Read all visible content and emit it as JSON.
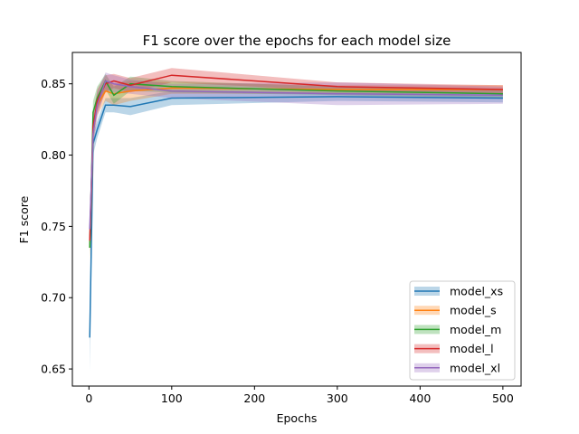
{
  "chart_data": {
    "type": "line",
    "title": "F1 score over the epochs for each model size",
    "xlabel": "Epochs",
    "ylabel": "F1 score",
    "xlim": [
      -20,
      522
    ],
    "ylim": [
      0.638,
      0.872
    ],
    "xticks": [
      0,
      100,
      200,
      300,
      400,
      500
    ],
    "yticks": [
      0.65,
      0.7,
      0.75,
      0.8,
      0.85
    ],
    "ytick_labels": [
      "0.65",
      "0.70",
      "0.75",
      "0.80",
      "0.85"
    ],
    "grid": false,
    "legend_position": "lower-right",
    "x": [
      1,
      5,
      10,
      20,
      30,
      50,
      100,
      300,
      500
    ],
    "series": [
      {
        "name": "model_xs",
        "color": "#1f77b4",
        "values": [
          0.672,
          0.808,
          0.818,
          0.835,
          0.835,
          0.834,
          0.84,
          0.841,
          0.84
        ],
        "lower": [
          0.648,
          0.8,
          0.812,
          0.83,
          0.83,
          0.828,
          0.835,
          0.838,
          0.837
        ],
        "upper": [
          0.695,
          0.815,
          0.824,
          0.84,
          0.84,
          0.84,
          0.845,
          0.844,
          0.843
        ]
      },
      {
        "name": "model_s",
        "color": "#ff7f0e",
        "values": [
          0.735,
          0.815,
          0.835,
          0.845,
          0.843,
          0.845,
          0.847,
          0.846,
          0.846
        ],
        "lower": [
          0.725,
          0.808,
          0.828,
          0.838,
          0.835,
          0.838,
          0.843,
          0.843,
          0.843
        ],
        "upper": [
          0.745,
          0.822,
          0.842,
          0.852,
          0.85,
          0.852,
          0.851,
          0.849,
          0.849
        ]
      },
      {
        "name": "model_m",
        "color": "#2ca02c",
        "values": [
          0.735,
          0.83,
          0.84,
          0.852,
          0.842,
          0.85,
          0.848,
          0.845,
          0.843
        ],
        "lower": [
          0.728,
          0.822,
          0.832,
          0.846,
          0.836,
          0.845,
          0.844,
          0.842,
          0.84
        ],
        "upper": [
          0.742,
          0.838,
          0.848,
          0.857,
          0.848,
          0.855,
          0.852,
          0.848,
          0.846
        ]
      },
      {
        "name": "model_l",
        "color": "#d62728",
        "values": [
          0.74,
          0.82,
          0.838,
          0.85,
          0.852,
          0.849,
          0.856,
          0.848,
          0.846
        ],
        "lower": [
          0.732,
          0.812,
          0.83,
          0.844,
          0.847,
          0.844,
          0.851,
          0.845,
          0.843
        ],
        "upper": [
          0.748,
          0.828,
          0.846,
          0.856,
          0.857,
          0.854,
          0.861,
          0.851,
          0.849
        ]
      },
      {
        "name": "model_xl",
        "color": "#9467bd",
        "values": [
          0.748,
          0.815,
          0.835,
          0.852,
          0.85,
          0.848,
          0.845,
          0.843,
          0.842
        ],
        "lower": [
          0.738,
          0.805,
          0.826,
          0.846,
          0.844,
          0.843,
          0.84,
          0.835,
          0.836
        ],
        "upper": [
          0.758,
          0.825,
          0.844,
          0.858,
          0.856,
          0.853,
          0.85,
          0.851,
          0.848
        ]
      }
    ]
  }
}
